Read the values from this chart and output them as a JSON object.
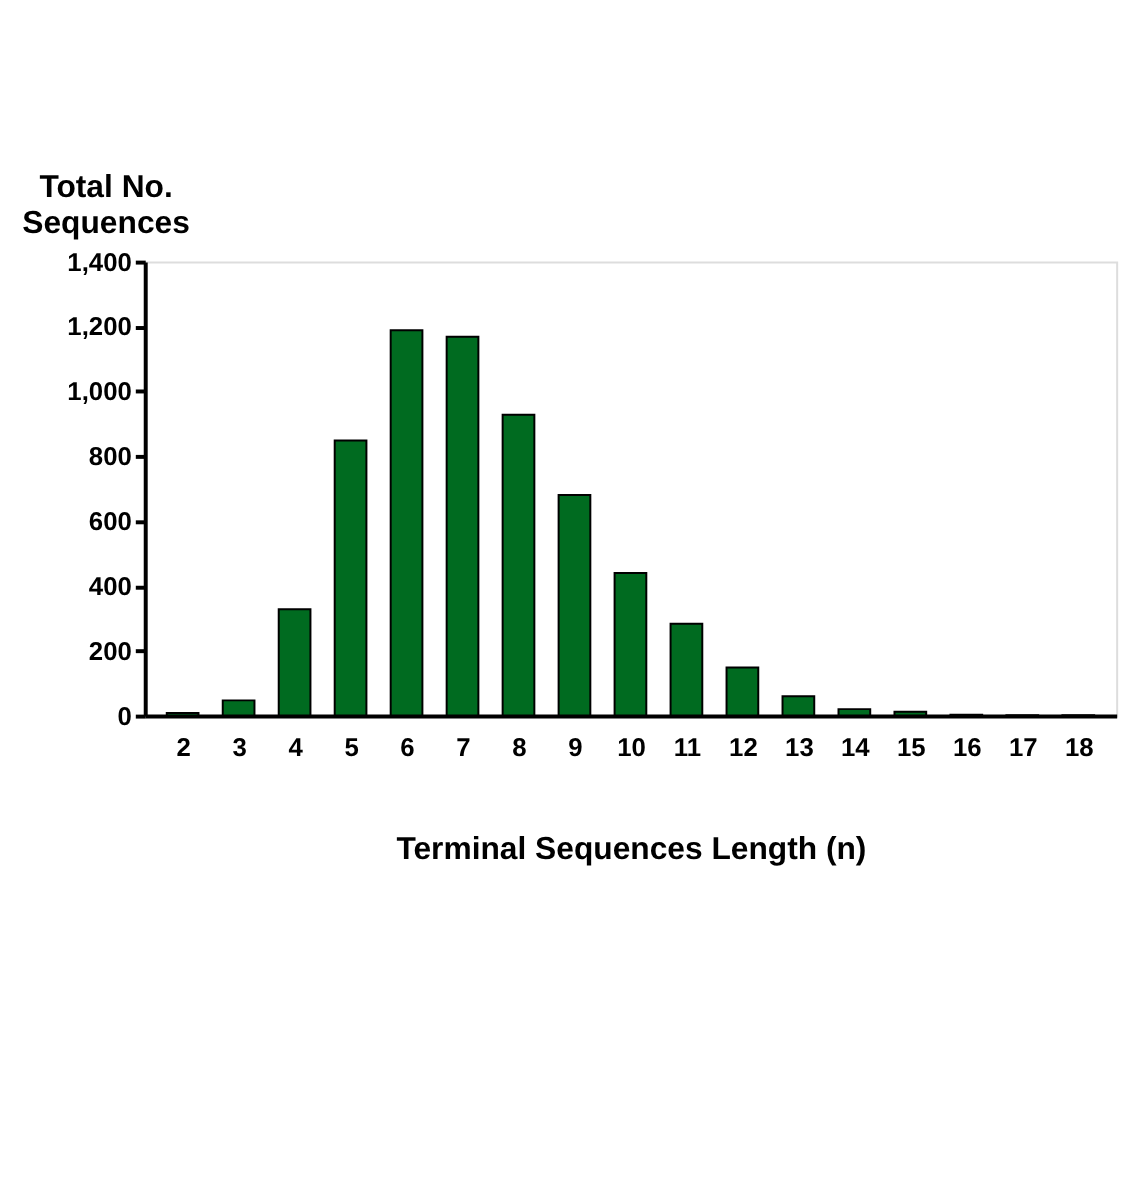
{
  "chart_data": {
    "type": "bar",
    "xlabel": "Terminal Sequences Length (n)",
    "ylabel": "Total No.\nSequences",
    "categories": [
      "2",
      "3",
      "4",
      "5",
      "6",
      "7",
      "8",
      "9",
      "10",
      "11",
      "12",
      "13",
      "14",
      "15",
      "16",
      "17",
      "18"
    ],
    "series": [
      {
        "color": "#006b20",
        "values": [
          8,
          47,
          328,
          848,
          1188,
          1168,
          928,
          680,
          440,
          283,
          148,
          60,
          20,
          12,
          3,
          1,
          1
        ]
      }
    ],
    "ylim": [
      0,
      1400
    ],
    "yticks": [
      {
        "value": 0,
        "label": "0"
      },
      {
        "value": 200,
        "label": "200"
      },
      {
        "value": 400,
        "label": "400"
      },
      {
        "value": 600,
        "label": "600"
      },
      {
        "value": 800,
        "label": "800"
      },
      {
        "value": 1000,
        "label": "1,000"
      },
      {
        "value": 1200,
        "label": "1,200"
      },
      {
        "value": 1400,
        "label": "1,400"
      }
    ],
    "grid": false,
    "legend": false
  }
}
